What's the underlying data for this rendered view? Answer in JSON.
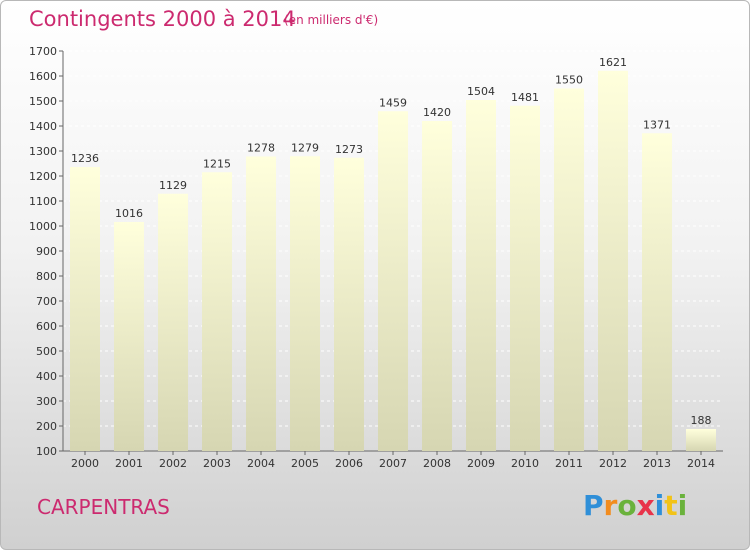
{
  "title": "Contingents 2000 à 2014",
  "subtitle": "(en milliers d'€)",
  "city": "CARPENTRAS",
  "logo": {
    "text": "Proxiti"
  },
  "colors": {
    "title": "#cc2a6f",
    "bar_top": "#ffffdc",
    "bar_bottom": "#d8d8b4"
  },
  "chart_data": {
    "type": "bar",
    "title": "Contingents 2000 à 2014",
    "subtitle": "(en milliers d'€)",
    "categories": [
      "2000",
      "2001",
      "2002",
      "2003",
      "2004",
      "2005",
      "2006",
      "2007",
      "2008",
      "2009",
      "2010",
      "2011",
      "2012",
      "2013",
      "2014"
    ],
    "values": [
      1236,
      1016,
      1129,
      1215,
      1278,
      1279,
      1273,
      1459,
      1420,
      1504,
      1481,
      1550,
      1621,
      1371,
      188
    ],
    "ylim": [
      100,
      1700
    ],
    "yticks": [
      100,
      200,
      300,
      400,
      500,
      600,
      700,
      800,
      900,
      1000,
      1100,
      1200,
      1300,
      1400,
      1500,
      1600,
      1700
    ],
    "grid": true,
    "xlabel": "",
    "ylabel": ""
  }
}
